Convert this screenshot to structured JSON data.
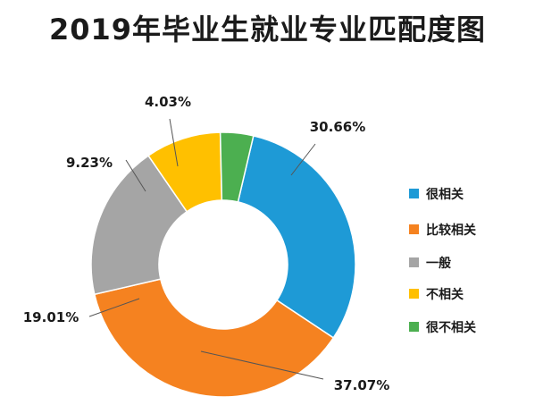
{
  "chart_data": {
    "type": "pie",
    "title": "2019年毕业生就业专业匹配度图",
    "legend_position": "right",
    "categories": [
      "很相关",
      "比较相关",
      "一般",
      "不相关",
      "很不相关"
    ],
    "values": [
      30.66,
      37.07,
      19.01,
      9.23,
      4.03
    ],
    "value_labels": [
      "30.66%",
      "37.07%",
      "19.01%",
      "9.23%",
      "4.03%"
    ],
    "colors": [
      "#1E9AD6",
      "#F58220",
      "#A5A5A5",
      "#FFC000",
      "#4CAF50"
    ]
  }
}
